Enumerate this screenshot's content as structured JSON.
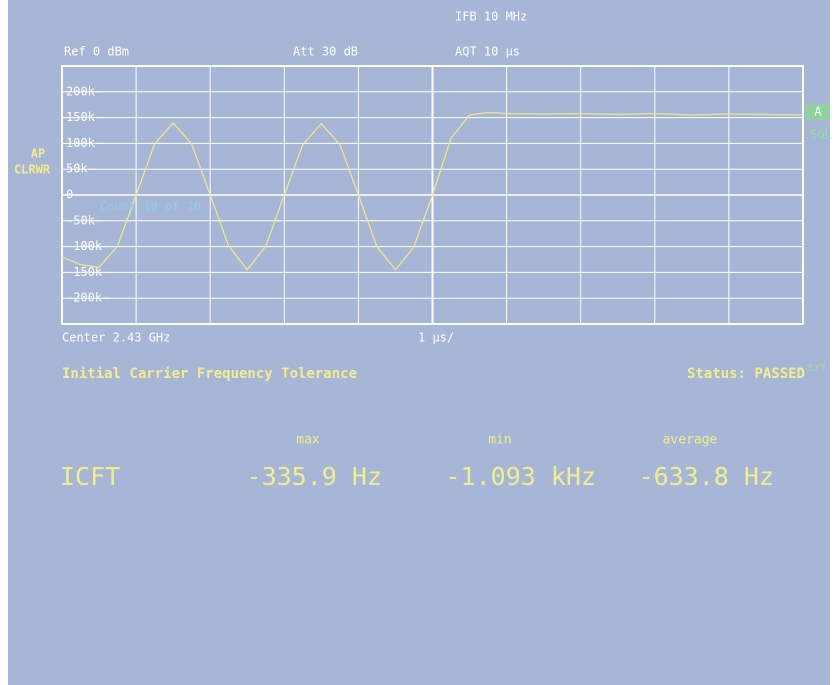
{
  "header": {
    "ifb": "IFB 10 MHz",
    "ref": "Ref  0 dBm",
    "att": "Att  30 dB",
    "aqt": "AQT 10 µs"
  },
  "side": {
    "ap": "AP",
    "clrwr": "CLRWR",
    "trace": "A",
    "sgl": "SGL",
    "count": "Count 10 of 10"
  },
  "chart_data": {
    "type": "line",
    "color": "#ece88a",
    "grid": true,
    "center_label": "Center 2.43 GHz",
    "x_scale_label": "1 µs/",
    "xlim": [
      0,
      10
    ],
    "ylim": [
      -250000,
      250000
    ],
    "yticks": [
      {
        "value": 200000,
        "label": "200k"
      },
      {
        "value": 150000,
        "label": "150k"
      },
      {
        "value": 100000,
        "label": "100k"
      },
      {
        "value": 50000,
        "label": "50k"
      },
      0,
      {
        "value": -50000,
        "label": "-50k"
      },
      {
        "value": -100000,
        "label": "-100k"
      },
      {
        "value": -150000,
        "label": "-150k"
      },
      {
        "value": -200000,
        "label": "-200k"
      }
    ],
    "x": [
      0,
      0.25,
      0.5,
      0.75,
      1,
      1.25,
      1.5,
      1.75,
      2,
      2.25,
      2.5,
      2.75,
      3,
      3.25,
      3.5,
      3.75,
      4,
      4.25,
      4.5,
      4.75,
      5,
      5.25,
      5.5,
      5.75,
      6,
      6.5,
      7,
      7.5,
      8,
      8.5,
      9,
      9.5,
      10
    ],
    "values": [
      -120000,
      -135000,
      -140000,
      -99000,
      0,
      99000,
      140000,
      99000,
      0,
      -99000,
      -145000,
      -99000,
      0,
      98000,
      138000,
      98000,
      0,
      -100000,
      -145000,
      -100000,
      0,
      110000,
      155000,
      160000,
      158000,
      157000,
      158000,
      156000,
      158000,
      155000,
      157000,
      156000,
      155000
    ]
  },
  "measurement": {
    "title": "Initial Carrier Frequency Tolerance",
    "status": "Status: PASSED",
    "ext": "EXT",
    "columns": [
      "max",
      "min",
      "average"
    ],
    "row": {
      "name": "ICFT",
      "values": [
        "-335.9 Hz",
        "-1.093 kHz",
        "-633.8 Hz"
      ]
    }
  }
}
